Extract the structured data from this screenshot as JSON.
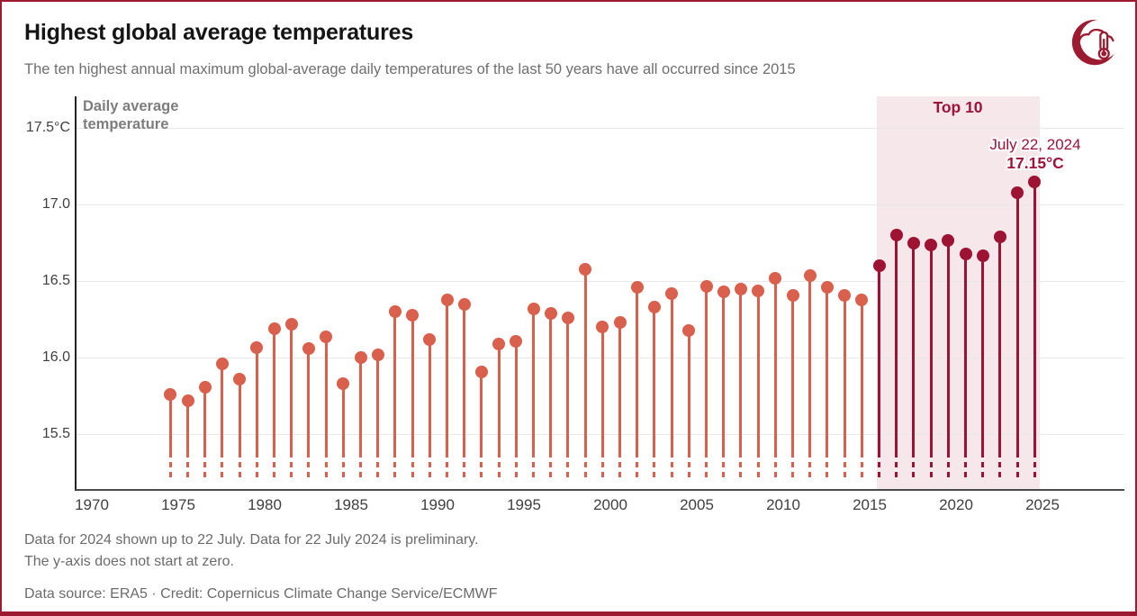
{
  "page": {
    "title": "Highest global average temperatures",
    "subtitle": "The ten highest annual maximum global-average daily temperatures of the last 50 years have all occurred since 2015"
  },
  "footer": {
    "note_line1": "Data for 2024 shown up to 22 July. Data for 22 July 2024 is preliminary.",
    "note_line2": "The y-axis does not start at zero.",
    "source": "Data source: ERA5 · Credit: Copernicus Climate Change Service/ECMWF"
  },
  "logo": {
    "name": "copernicus-climate-change-service-logo"
  },
  "colors": {
    "border": "#9d1b31",
    "salmon": "#d9604c",
    "dark_red": "#9e1233",
    "accent_text": "#a1123a",
    "pink_band": "#f5e7ea",
    "gridline": "#e8e8e8",
    "x_axis_line": "#4a4a4a",
    "y_axis_line": "#222222",
    "title_text": "#151515",
    "muted_text": "#6f6f6f",
    "tick_text": "#3f3f3f",
    "axis_title_text": "#7d7d7d"
  },
  "chart_data": {
    "type": "scatter",
    "variant": "lollipop",
    "title": "Highest global average temperatures",
    "xlabel": "",
    "ylabel": "Daily average temperature",
    "axis_title_line1": "Daily average",
    "axis_title_line2": "temperature",
    "unit": "°C",
    "x": [
      1974,
      1975,
      1976,
      1977,
      1978,
      1979,
      1980,
      1981,
      1982,
      1983,
      1984,
      1985,
      1986,
      1987,
      1988,
      1989,
      1990,
      1991,
      1992,
      1993,
      1994,
      1995,
      1996,
      1997,
      1998,
      1999,
      2000,
      2001,
      2002,
      2003,
      2004,
      2005,
      2006,
      2007,
      2008,
      2009,
      2010,
      2011,
      2012,
      2013,
      2014,
      2015,
      2016,
      2017,
      2018,
      2019,
      2020,
      2021,
      2022,
      2023,
      2024
    ],
    "y": [
      15.76,
      15.72,
      15.81,
      15.96,
      15.86,
      16.07,
      16.19,
      16.22,
      16.06,
      16.14,
      15.83,
      16.0,
      16.02,
      16.3,
      16.28,
      16.12,
      16.38,
      16.35,
      15.91,
      16.09,
      16.11,
      16.32,
      16.29,
      16.26,
      16.58,
      16.2,
      16.23,
      16.46,
      16.33,
      16.42,
      16.18,
      16.47,
      16.43,
      16.45,
      16.44,
      16.52,
      16.41,
      16.54,
      16.46,
      16.41,
      16.38,
      16.6,
      16.8,
      16.75,
      16.74,
      16.77,
      16.68,
      16.67,
      16.79,
      17.08,
      17.15
    ],
    "series_name": "Annual maximum daily global-average temperature",
    "ylim": [
      15.14,
      17.71
    ],
    "xlim": [
      1969.1,
      2029.7
    ],
    "grid": true,
    "legend": false,
    "y_ticks": [
      {
        "value": 17.5,
        "label": "17.5°C"
      },
      {
        "value": 17.0,
        "label": "17.0"
      },
      {
        "value": 16.5,
        "label": "16.5"
      },
      {
        "value": 16.0,
        "label": "16.0"
      },
      {
        "value": 15.5,
        "label": "15.5"
      }
    ],
    "x_ticks": [
      1970,
      1975,
      1980,
      1985,
      1990,
      1995,
      2000,
      2005,
      2010,
      2015,
      2020,
      2025
    ],
    "highlight_start_year": 2015,
    "highlight_label": "Top 10",
    "annotation": {
      "date": "July 22, 2024",
      "value": "17.15°C"
    }
  }
}
